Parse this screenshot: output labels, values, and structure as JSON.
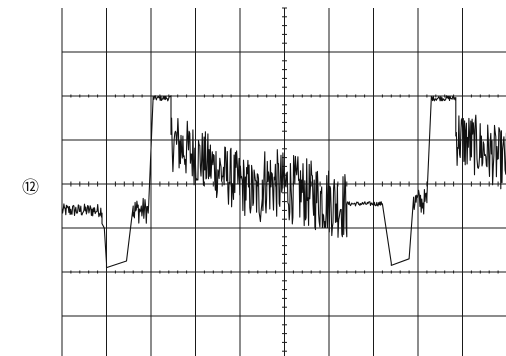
{
  "figure": {
    "label": "⑫"
  },
  "colors": {
    "trace": "#111111",
    "grid": "#1a1a1a",
    "background": "#ffffff"
  },
  "chart_data": {
    "type": "line",
    "title": "",
    "xlabel": "",
    "ylabel": "",
    "grid": true,
    "divisions": {
      "x": 10,
      "y": 8
    },
    "xlim": [
      0,
      10
    ],
    "ylim": [
      -4,
      4
    ],
    "series": [
      {
        "name": "",
        "segments": [
          {
            "kind": "noise",
            "x0": 0.0,
            "x1": 0.9,
            "y0": -0.6,
            "y1": -0.6,
            "amp": 0.15
          },
          {
            "kind": "line",
            "x0": 0.9,
            "x1": 0.95,
            "y0": -0.9,
            "y1": -1.0
          },
          {
            "kind": "line",
            "x0": 0.95,
            "x1": 1.0,
            "y0": -1.0,
            "y1": -1.8
          },
          {
            "kind": "line",
            "x0": 1.0,
            "x1": 1.45,
            "y0": -1.9,
            "y1": -1.75
          },
          {
            "kind": "line",
            "x0": 1.45,
            "x1": 1.6,
            "y0": -1.75,
            "y1": -0.5
          },
          {
            "kind": "noise",
            "x0": 1.6,
            "x1": 1.95,
            "y0": -0.6,
            "y1": -0.6,
            "amp": 0.3
          },
          {
            "kind": "line",
            "x0": 1.95,
            "x1": 2.05,
            "y0": -0.4,
            "y1": 2.0
          },
          {
            "kind": "noise",
            "x0": 2.05,
            "x1": 2.45,
            "y0": 1.95,
            "y1": 1.95,
            "amp": 0.06
          },
          {
            "kind": "noise",
            "x0": 2.45,
            "x1": 4.5,
            "y0": 1.0,
            "y1": -0.3,
            "amp": 0.7
          },
          {
            "kind": "noise",
            "x0": 4.5,
            "x1": 6.4,
            "y0": 0.1,
            "y1": -0.5,
            "amp": 0.8
          },
          {
            "kind": "noise",
            "x0": 6.4,
            "x1": 7.2,
            "y0": -0.45,
            "y1": -0.45,
            "amp": 0.05
          },
          {
            "kind": "line",
            "x0": 7.2,
            "x1": 7.4,
            "y0": -0.45,
            "y1": -1.8
          },
          {
            "kind": "line",
            "x0": 7.4,
            "x1": 7.8,
            "y0": -1.85,
            "y1": -1.7
          },
          {
            "kind": "line",
            "x0": 7.8,
            "x1": 7.9,
            "y0": -1.7,
            "y1": -0.3
          },
          {
            "kind": "noise",
            "x0": 7.9,
            "x1": 8.2,
            "y0": -0.4,
            "y1": -0.4,
            "amp": 0.3
          },
          {
            "kind": "line",
            "x0": 8.2,
            "x1": 8.3,
            "y0": -0.3,
            "y1": 2.0
          },
          {
            "kind": "noise",
            "x0": 8.3,
            "x1": 8.85,
            "y0": 1.95,
            "y1": 1.95,
            "amp": 0.06
          },
          {
            "kind": "noise",
            "x0": 8.85,
            "x1": 10.0,
            "y0": 1.1,
            "y1": 0.5,
            "amp": 0.7
          }
        ]
      }
    ]
  }
}
